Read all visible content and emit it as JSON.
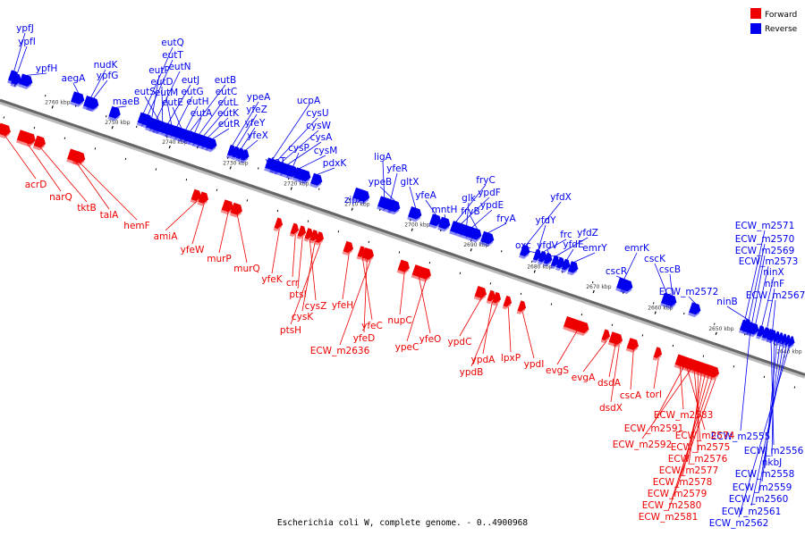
{
  "caption": "Escherichia coli W, complete genome. - 0..4900968",
  "legend": [
    {
      "label": "Forward",
      "color": "#ee0000"
    },
    {
      "label": "Reverse",
      "color": "#0000ee"
    }
  ],
  "colors": {
    "forward": "#ee0000",
    "reverse": "#0000ee",
    "backbone": "#666666"
  },
  "ticks": [
    "2760 kbp",
    "2750 kbp",
    "2740 kbp",
    "2730 kbp",
    "2720 kbp",
    "2710 kbp",
    "2700 kbp",
    "2690 kbp",
    "2680 kbp",
    "2670 kbp",
    "2660 kbp",
    "2650 kbp",
    "2640 kbp"
  ],
  "reverse_genes": [
    "ypfJ",
    "ypfI",
    "ypfH",
    "aegA",
    "nudK",
    "ypfG",
    "maeB",
    "eutQ",
    "eutT",
    "eutP",
    "eutN",
    "eutS",
    "eutD",
    "eutJ",
    "eutM",
    "eutG",
    "eutE",
    "eutH",
    "eutB",
    "eutA",
    "eutC",
    "eutL",
    "eutK",
    "eutR",
    "ypeA",
    "yfeZ",
    "yfeY",
    "yfeX",
    "ucpA",
    "cysU",
    "cysW",
    "cysA",
    "cysP",
    "cysM",
    "yfeT",
    "pdxK",
    "zipA",
    "ligA",
    "yfeR",
    "ypeB",
    "gltX",
    "yfeA",
    "mntH",
    "fryC",
    "ypdF",
    "glk",
    "ypdE",
    "fryB",
    "fryA",
    "yfdX",
    "yfdY",
    "frc",
    "yfdV",
    "yfdZ",
    "oxc",
    "yfdE",
    "emrY",
    "emrK",
    "cscR",
    "cscK",
    "cscB",
    "ECW_m2572",
    "ECW_m2571",
    "ECW_m2570",
    "ECW_m2569",
    "ECW_m2573",
    "ninB",
    "ninX",
    "ninF",
    "ECW_m2567",
    "ECW_m2555",
    "ECW_m2556",
    "nkbJ",
    "ECW_m2558",
    "ECW_m2559",
    "ECW_m2560",
    "ECW_m2561",
    "ECW_m2562"
  ],
  "forward_genes": [
    "acrD",
    "narQ",
    "tktB",
    "talA",
    "hemF",
    "amiA",
    "yfeW",
    "murP",
    "murQ",
    "yfeK",
    "crr",
    "ptsI",
    "cysZ",
    "cysK",
    "ptsH",
    "yfeH",
    "yfeC",
    "yfeD",
    "ECW_m2636",
    "nupC",
    "yfeO",
    "ypeC",
    "ypdC",
    "ypdA",
    "ypdB",
    "lpxP",
    "ypdI",
    "evgS",
    "evgA",
    "dsdA",
    "dsdX",
    "cscA",
    "torI",
    "ECW_m2583",
    "ECW_m2591",
    "ECW_m2574",
    "ECW_m2592",
    "ECW_m2575",
    "ECW_m2576",
    "ECW_m2577",
    "ECW_m2578",
    "ECW_m2579",
    "ECW_m2580",
    "ECW_m2581"
  ]
}
